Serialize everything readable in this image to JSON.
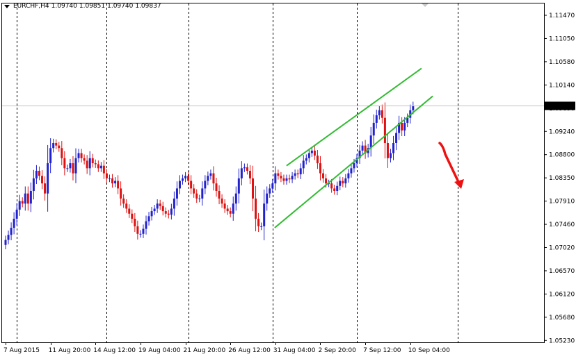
{
  "header": {
    "symbol": "EURCHF,H4",
    "open": "1.09740",
    "high": "1.09851",
    "low": "1.09740",
    "close": "1.09837"
  },
  "colors": {
    "bull": "#2222cc",
    "bear": "#dd1111",
    "channel": "#33bb33",
    "arrow": "#ee1111",
    "grid": "#000000",
    "price_line": "#c0c0c0"
  },
  "chart_data": {
    "type": "candlestick",
    "symbol": "EURCHF",
    "timeframe": "H4",
    "current_price": 1.09837,
    "current_price_label": "1.09837",
    "ylim": [
      1.0515,
      1.1188
    ],
    "y_ticks": [
      "1.11470",
      "1.11050",
      "1.10580",
      "1.10140",
      "1.09690",
      "1.09240",
      "1.08800",
      "1.08350",
      "1.07910",
      "1.07460",
      "1.07020",
      "1.06570",
      "1.06120",
      "1.05680",
      "1.05230"
    ],
    "x_ticks": [
      "7 Aug 2015",
      "11 Aug 20:00",
      "14 Aug 12:00",
      "19 Aug 04:00",
      "21 Aug 20:00",
      "26 Aug 12:00",
      "31 Aug 04:00",
      "2 Sep 20:00",
      "7 Sep 12:00",
      "10 Sep 04:00"
    ],
    "x_tick_bars": [
      0,
      16,
      32,
      48,
      64,
      80,
      96,
      112,
      128,
      144
    ],
    "separator_bars": [
      4,
      36,
      65,
      95,
      125,
      161
    ],
    "total_slots": 193,
    "close": [
      1.0718,
      1.0728,
      1.0742,
      1.076,
      1.0778,
      1.0795,
      1.079,
      1.081,
      1.079,
      1.0815,
      1.084,
      1.0855,
      1.0845,
      1.083,
      1.081,
      1.087,
      1.09,
      1.091,
      1.0905,
      1.09,
      1.088,
      1.086,
      1.086,
      1.087,
      1.085,
      1.088,
      1.089,
      1.088,
      1.0875,
      1.086,
      1.088,
      1.087,
      1.0868,
      1.086,
      1.0865,
      1.085,
      1.084,
      1.084,
      1.083,
      1.0835,
      1.082,
      1.08,
      1.079,
      1.078,
      1.077,
      1.076,
      1.0745,
      1.073,
      1.073,
      1.074,
      1.0755,
      1.0765,
      1.0775,
      1.078,
      1.079,
      1.0785,
      1.0775,
      1.077,
      1.0768,
      1.078,
      1.08,
      1.082,
      1.0835,
      1.084,
      1.0845,
      1.0835,
      1.082,
      1.081,
      1.08,
      1.08,
      1.082,
      1.0835,
      1.0845,
      1.085,
      1.083,
      1.0815,
      1.08,
      1.079,
      1.078,
      1.0775,
      1.077,
      1.079,
      1.081,
      1.084,
      1.086,
      1.0862,
      1.0855,
      1.084,
      1.08,
      1.076,
      1.0745,
      1.0745,
      1.079,
      1.081,
      1.082,
      1.083,
      1.085,
      1.0845,
      1.084,
      1.0835,
      1.084,
      1.0838,
      1.0845,
      1.085,
      1.0848,
      1.086,
      1.0875,
      1.088,
      1.089,
      1.0895,
      1.0885,
      1.087,
      1.085,
      1.084,
      1.083,
      1.083,
      1.082,
      1.0815,
      1.0825,
      1.0835,
      1.083,
      1.084,
      1.085,
      1.086,
      1.087,
      1.088,
      1.0895,
      1.0905,
      1.089,
      1.09,
      1.0925,
      1.095,
      1.0965,
      1.0975,
      1.096,
      1.091,
      1.088,
      1.089,
      1.091,
      1.093,
      1.095,
      1.0935,
      1.095,
      1.096,
      1.0975,
      1.0984
    ],
    "channel_lines": [
      {
        "x": [
          "31 Aug 2015 04:00",
          "10 Sep 2015 20:00"
        ],
        "y": [
          1.0865,
          1.1058
        ]
      },
      {
        "x": [
          "31 Aug 2015 04:00",
          "11 Sep 2015 12:00"
        ],
        "y": [
          1.0742,
          1.1003
        ]
      }
    ],
    "annotation": "arrow-down",
    "grid": false
  }
}
